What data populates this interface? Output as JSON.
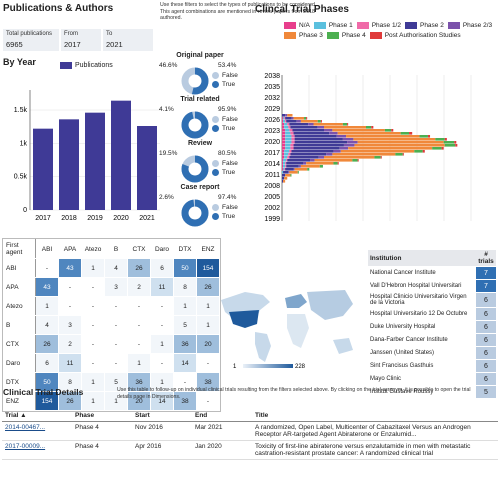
{
  "filters": {
    "title": "Publications & Authors",
    "note": "Use these filters to select the types of publications to be considered. This agent combinations are mentioned in review papers from 2018 authored.",
    "total_label": "Total publications",
    "total_value": "6965",
    "from_label": "From",
    "from_value": "2017",
    "to_label": "To",
    "to_value": "2021"
  },
  "by_year": {
    "title": "By Year",
    "legend": "Publications",
    "color": "#3f3a96",
    "chart_data": {
      "type": "bar",
      "categories": [
        "2017",
        "2018",
        "2019",
        "2020",
        "2021"
      ],
      "values": [
        1220,
        1360,
        1460,
        1640,
        1260
      ],
      "yticks": [
        "0",
        "0.5k",
        "1k",
        "1.5k"
      ],
      "ylim": [
        0,
        1800
      ]
    }
  },
  "donuts": [
    {
      "title": "Original paper",
      "false_pct": "46.6%",
      "true_pct": "53.4%",
      "true_frac": 0.534
    },
    {
      "title": "Trial related",
      "false_pct": "4.1%",
      "true_pct": "95.9%",
      "true_frac": 0.959
    },
    {
      "title": "Review",
      "false_pct": "19.5%",
      "true_pct": "80.5%",
      "true_frac": 0.805
    },
    {
      "title": "Case report",
      "false_pct": "2.6%",
      "true_pct": "97.4%",
      "true_frac": 0.974
    }
  ],
  "donut_legend": {
    "false": "False",
    "true": "True",
    "false_color": "#b9cbe0",
    "true_color": "#2f6fb3"
  },
  "phases": {
    "title": "Clincal Trial Phases",
    "legend": [
      {
        "name": "N/A",
        "color": "#e83e8c"
      },
      {
        "name": "Phase 1",
        "color": "#5bc0de"
      },
      {
        "name": "Phase 1/2",
        "color": "#f06aa8"
      },
      {
        "name": "Phase 2",
        "color": "#3f3a96"
      },
      {
        "name": "Phase 2/3",
        "color": "#7b52ab"
      },
      {
        "name": "Phase 3",
        "color": "#f0883a"
      },
      {
        "name": "Phase 4",
        "color": "#4caf50"
      },
      {
        "name": "Post Authorisation Studies",
        "color": "#e03a3a"
      }
    ],
    "year_labels": [
      "2038",
      "2035",
      "2032",
      "2029",
      "2026",
      "2023",
      "2020",
      "2017",
      "2014",
      "2011",
      "2008",
      "2005",
      "2002",
      "1999"
    ]
  },
  "matrix": {
    "corner": "First agent",
    "cols": [
      "ABI",
      "APA",
      "Atezo",
      "B",
      "CTX",
      "Daro",
      "DTX",
      "ENZ"
    ],
    "rows": [
      {
        "name": "ABI",
        "cells": [
          "-",
          "43",
          "1",
          "4",
          "26",
          "6",
          "50",
          "154"
        ]
      },
      {
        "name": "APA",
        "cells": [
          "43",
          "-",
          "-",
          "3",
          "2",
          "11",
          "8",
          "26"
        ]
      },
      {
        "name": "Atezo",
        "cells": [
          "1",
          "-",
          "-",
          "-",
          "-",
          "-",
          "1",
          "1"
        ]
      },
      {
        "name": "B",
        "cells": [
          "4",
          "3",
          "-",
          "-",
          "-",
          "-",
          "5",
          "1"
        ]
      },
      {
        "name": "CTX",
        "cells": [
          "26",
          "2",
          "-",
          "-",
          "-",
          "1",
          "36",
          "20"
        ]
      },
      {
        "name": "Daro",
        "cells": [
          "6",
          "11",
          "-",
          "-",
          "1",
          "-",
          "14",
          "-"
        ]
      },
      {
        "name": "DTX",
        "cells": [
          "50",
          "8",
          "1",
          "5",
          "36",
          "1",
          "-",
          "38"
        ]
      },
      {
        "name": "ENZ",
        "cells": [
          "154",
          "26",
          "1",
          "1",
          "20",
          "14",
          "38",
          "-"
        ]
      }
    ]
  },
  "map": {
    "legend_min": "1",
    "legend_max": "228"
  },
  "institutions": {
    "col1": "Institution",
    "col2": "# trials",
    "rows": [
      {
        "name": "National Cancer Institute",
        "n": "7"
      },
      {
        "name": "Vall D'Hebron Hospital Universitari",
        "n": "7"
      },
      {
        "name": "Hospital Clinicio Universitario Virgen de la Victoria",
        "n": "6"
      },
      {
        "name": "Hospital Universitario 12 De Octubre",
        "n": "6"
      },
      {
        "name": "Duke University Hospital",
        "n": "6"
      },
      {
        "name": "Dana-Farber Cancer Institute",
        "n": "6"
      },
      {
        "name": "Janssen (United States)",
        "n": "6"
      },
      {
        "name": "Sint Francisus Gasthuis",
        "n": "6"
      },
      {
        "name": "Mayo Clinic",
        "n": "6"
      },
      {
        "name": "Institut Gustave Roussy",
        "n": "5"
      }
    ]
  },
  "details": {
    "title": "Clinical Trial Details",
    "note": "Use this table to follow-up on individual clinical trials resulting from the filters selected above. By clicking on the trial acronym, it is possible to open the trial details page in Dimensions.",
    "headers": [
      "Trial",
      "Phase",
      "Start",
      "End",
      "Title"
    ],
    "sort_glyph": "▲",
    "rows": [
      {
        "trial": "2014-00467...",
        "phase": "Phase 4",
        "start": "Nov 2016",
        "end": "Mar 2021",
        "title": "A randomized, Open Label, Multicenter of Cabazitaxel Versus an Androgen Receptor AR-targeted Agent Abiraterone or Enzalumid..."
      },
      {
        "trial": "2017-00009...",
        "phase": "Phase 4",
        "start": "Apr 2016",
        "end": "Jan 2020",
        "title": "Toxicity of first-line abiraterone versus enzalutamide in men with metastatic castration-resistant prostate cancer: A randomized clinical trial"
      }
    ]
  }
}
